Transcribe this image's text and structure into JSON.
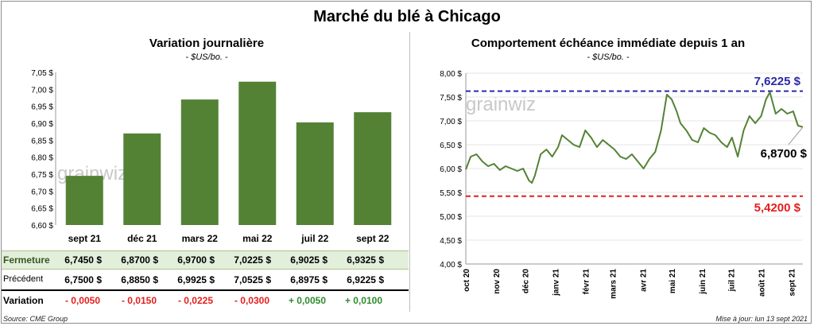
{
  "title": "Marché du blé à Chicago",
  "colors": {
    "bar": "#548235",
    "line": "#548235",
    "high": "#2a2aa8",
    "low": "#e41e1e",
    "pos": "#2e8b2e",
    "neg": "#e41e1e",
    "rowhl": "#e2efda"
  },
  "left_panel": {
    "title": "Variation journalière",
    "subtitle": "- $US/bo. -",
    "watermark": "grainwiz",
    "rows": {
      "close": {
        "label": "Fermeture",
        "values": [
          "6,7450  $",
          "6,8700  $",
          "6,9700  $",
          "7,0225  $",
          "6,9025  $",
          "6,9325  $"
        ]
      },
      "prev": {
        "label": "Précédent",
        "values": [
          "6,7500  $",
          "6,8850  $",
          "6,9925  $",
          "7,0525  $",
          "6,8975  $",
          "6,9225  $"
        ]
      },
      "change": {
        "label": "Variation",
        "values": [
          "- 0,0050",
          "- 0,0150",
          "- 0,0225",
          "- 0,0300",
          "+ 0,0050",
          "+ 0,0100"
        ]
      }
    }
  },
  "right_panel": {
    "title": "Comportement  échéance immédiate depuis 1 an",
    "subtitle": "- $US/bo. -",
    "watermark": "grainwiz",
    "high_label": "7,6225 $",
    "low_label": "5,4200 $",
    "last_label": "6,8700 $"
  },
  "footer": {
    "source": "Source: CME Group",
    "updated": "Mise à jour: lun 13 sept 2021"
  },
  "chart_data": [
    {
      "type": "bar",
      "title": "Variation journalière",
      "subtitle": "- $US/bo. -",
      "categories": [
        "sept 21",
        "déc 21",
        "mars 22",
        "mai 22",
        "juil 22",
        "sept 22"
      ],
      "values": [
        6.745,
        6.87,
        6.97,
        7.0225,
        6.9025,
        6.9325
      ],
      "ylim": [
        6.6,
        7.05
      ],
      "yticks": [
        "6,60 $",
        "6,65 $",
        "6,70 $",
        "6,75 $",
        "6,80 $",
        "6,85 $",
        "6,90 $",
        "6,95 $",
        "7,00 $",
        "7,05 $"
      ],
      "grid": false
    },
    {
      "type": "line",
      "title": "Comportement  échéance immédiate depuis 1 an",
      "subtitle": "- $US/bo. -",
      "ylim": [
        4.0,
        8.0
      ],
      "yticks": [
        "4,00 $",
        "4,50 $",
        "5,00 $",
        "5,50 $",
        "6,00 $",
        "6,50 $",
        "7,00 $",
        "7,50 $",
        "8,00 $"
      ],
      "xticks": [
        "oct 20",
        "nov 20",
        "déc 20",
        "janv 21",
        "févr 21",
        "mars 21",
        "avr 21",
        "mai 21",
        "juin 21",
        "juil 21",
        "août 21",
        "sept 21"
      ],
      "x_start": "2020-10-01",
      "x_end": "2021-09-13",
      "high": 7.6225,
      "low": 5.42,
      "last": 6.87,
      "series": [
        {
          "x": [
            "2020-10-01",
            "2020-10-06",
            "2020-10-12",
            "2020-10-18",
            "2020-10-24",
            "2020-10-30",
            "2020-11-05",
            "2020-11-11",
            "2020-11-17",
            "2020-11-23",
            "2020-11-29",
            "2020-12-05",
            "2020-12-08",
            "2020-12-11",
            "2020-12-17",
            "2020-12-23",
            "2020-12-29",
            "2021-01-04",
            "2021-01-08",
            "2021-01-14",
            "2021-01-20",
            "2021-01-26",
            "2021-02-01",
            "2021-02-07",
            "2021-02-13",
            "2021-02-19",
            "2021-02-25",
            "2021-03-03",
            "2021-03-09",
            "2021-03-15",
            "2021-03-21",
            "2021-03-27",
            "2021-04-02",
            "2021-04-08",
            "2021-04-14",
            "2021-04-20",
            "2021-04-26",
            "2021-05-01",
            "2021-05-06",
            "2021-05-10",
            "2021-05-16",
            "2021-05-22",
            "2021-05-28",
            "2021-06-03",
            "2021-06-09",
            "2021-06-15",
            "2021-06-21",
            "2021-06-27",
            "2021-07-02",
            "2021-07-08",
            "2021-07-14",
            "2021-07-20",
            "2021-07-26",
            "2021-08-01",
            "2021-08-06",
            "2021-08-10",
            "2021-08-16",
            "2021-08-22",
            "2021-08-28",
            "2021-09-03",
            "2021-09-08",
            "2021-09-13"
          ],
          "y": [
            5.98,
            6.25,
            6.3,
            6.15,
            6.05,
            6.1,
            5.97,
            6.05,
            6.0,
            5.95,
            6.0,
            5.75,
            5.7,
            5.85,
            6.3,
            6.4,
            6.25,
            6.45,
            6.7,
            6.6,
            6.5,
            6.45,
            6.8,
            6.65,
            6.45,
            6.6,
            6.5,
            6.4,
            6.25,
            6.2,
            6.3,
            6.15,
            6.0,
            6.2,
            6.35,
            6.8,
            7.55,
            7.45,
            7.2,
            6.95,
            6.8,
            6.6,
            6.55,
            6.85,
            6.75,
            6.7,
            6.55,
            6.45,
            6.65,
            6.25,
            6.8,
            7.1,
            6.95,
            7.1,
            7.45,
            7.6,
            7.15,
            7.25,
            7.15,
            7.2,
            6.9,
            6.87
          ]
        }
      ]
    }
  ]
}
